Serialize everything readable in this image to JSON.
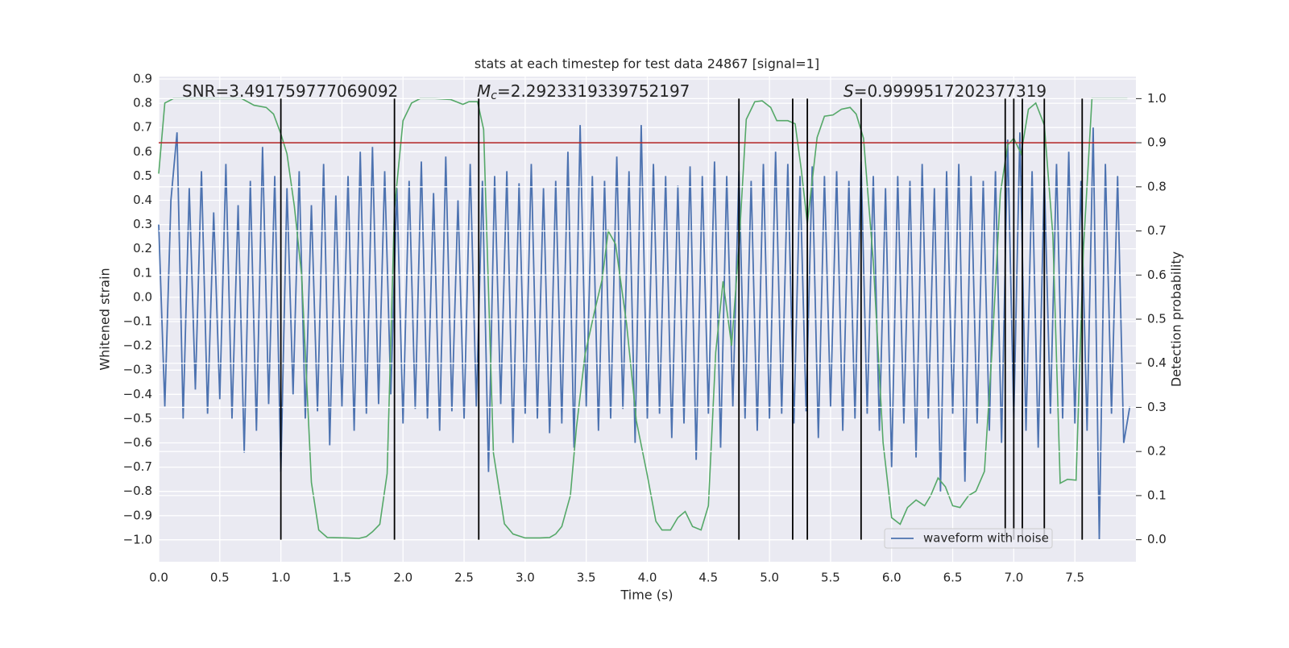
{
  "chart_data": {
    "type": "line",
    "title": "stats at each timestep for test data 24867 [signal=1]",
    "xlabel": "Time (s)",
    "ylabel": "Whitened strain",
    "y2label": "Detection probability",
    "annotations": [
      {
        "text": "SNR=3.491759777069092"
      },
      {
        "symbol": "M",
        "sub": "c",
        "text": "=2.2923319339752197"
      },
      {
        "symbol": "S",
        "text": "=0.9999517202377319"
      }
    ],
    "xlim": [
      0,
      8
    ],
    "ylim": [
      -1.09,
      0.91
    ],
    "y2lim": [
      -0.05,
      1.05
    ],
    "xticks": [
      {
        "value": 0,
        "label": "0.0"
      },
      0.5,
      {
        "value": 1,
        "label": "1.0"
      },
      1.5,
      {
        "value": 2,
        "label": "2.0"
      },
      2.5,
      {
        "value": 3,
        "label": "3.0"
      },
      3.5,
      {
        "value": 4,
        "label": "4.0"
      },
      4.5,
      {
        "value": 5,
        "label": "5.0"
      },
      5.5,
      {
        "value": 6,
        "label": "6.0"
      },
      6.5,
      {
        "value": 7,
        "label": "7.0"
      },
      7.5
    ],
    "yticks": [
      0.9,
      0.8,
      0.7,
      0.6,
      0.5,
      0.4,
      0.3,
      0.2,
      0.1,
      {
        "value": 0,
        "label": "0.0"
      },
      {
        "value": -0.1,
        "label": "−0.1"
      },
      {
        "value": -0.2,
        "label": "−0.2"
      },
      {
        "value": -0.3,
        "label": "−0.3"
      },
      {
        "value": -0.4,
        "label": "−0.4"
      },
      {
        "value": -0.5,
        "label": "−0.5"
      },
      {
        "value": -0.6,
        "label": "−0.6"
      },
      {
        "value": -0.7,
        "label": "−0.7"
      },
      {
        "value": -0.8,
        "label": "−0.8"
      },
      {
        "value": -0.9,
        "label": "−0.9"
      },
      {
        "value": -1,
        "label": "−1.0"
      }
    ],
    "y2ticks": [
      {
        "value": 0,
        "label": "0.0"
      },
      0.1,
      0.2,
      0.3,
      0.4,
      0.5,
      0.6,
      0.7,
      0.8,
      0.9,
      {
        "value": 1,
        "label": "1.0"
      }
    ],
    "grid": true,
    "legend": "lower right",
    "series": [
      {
        "name": "waveform with noise",
        "color": "#4c72b0",
        "axis": "y",
        "x": [
          0,
          0.05,
          0.1,
          0.15,
          0.2,
          0.25,
          0.3,
          0.35,
          0.4,
          0.45,
          0.5,
          0.55,
          0.6,
          0.65,
          0.7,
          0.75,
          0.8,
          0.85,
          0.9,
          0.95,
          1,
          1.05,
          1.1,
          1.15,
          1.2,
          1.25,
          1.3,
          1.35,
          1.4,
          1.45,
          1.5,
          1.55,
          1.6,
          1.65,
          1.7,
          1.75,
          1.8,
          1.85,
          1.9,
          1.95,
          2,
          2.05,
          2.1,
          2.15,
          2.2,
          2.25,
          2.3,
          2.35,
          2.4,
          2.45,
          2.5,
          2.55,
          2.6,
          2.65,
          2.7,
          2.75,
          2.8,
          2.85,
          2.9,
          2.95,
          3,
          3.05,
          3.1,
          3.15,
          3.2,
          3.25,
          3.3,
          3.35,
          3.4,
          3.45,
          3.5,
          3.55,
          3.6,
          3.65,
          3.7,
          3.75,
          3.8,
          3.85,
          3.9,
          3.95,
          4,
          4.05,
          4.1,
          4.15,
          4.2,
          4.25,
          4.3,
          4.35,
          4.4,
          4.45,
          4.5,
          4.55,
          4.6,
          4.65,
          4.7,
          4.75,
          4.8,
          4.85,
          4.9,
          4.95,
          5,
          5.05,
          5.1,
          5.15,
          5.2,
          5.25,
          5.3,
          5.35,
          5.4,
          5.45,
          5.5,
          5.55,
          5.6,
          5.65,
          5.7,
          5.75,
          5.8,
          5.85,
          5.9,
          5.95,
          6,
          6.05,
          6.1,
          6.15,
          6.2,
          6.25,
          6.3,
          6.35,
          6.4,
          6.45,
          6.5,
          6.55,
          6.6,
          6.65,
          6.7,
          6.75,
          6.8,
          6.85,
          6.9,
          6.95,
          7,
          7.05,
          7.1,
          7.15,
          7.2,
          7.25,
          7.3,
          7.35,
          7.4,
          7.45,
          7.5,
          7.55,
          7.6,
          7.65,
          7.7,
          7.75,
          7.8,
          7.85,
          7.9,
          7.95
        ],
        "values": [
          0.3,
          -0.45,
          0.4,
          0.68,
          -0.5,
          0.45,
          -0.38,
          0.52,
          -0.48,
          0.35,
          -0.42,
          0.55,
          -0.5,
          0.38,
          -0.64,
          0.48,
          -0.55,
          0.62,
          -0.44,
          0.5,
          -0.72,
          0.45,
          -0.4,
          0.52,
          -0.5,
          0.38,
          -0.47,
          0.55,
          -0.61,
          0.42,
          -0.45,
          0.5,
          -0.55,
          0.6,
          -0.48,
          0.62,
          -0.44,
          0.52,
          -0.4,
          0.45,
          -0.52,
          0.48,
          -0.46,
          0.56,
          -0.5,
          0.43,
          -0.55,
          0.58,
          -0.47,
          0.4,
          -0.5,
          0.55,
          -0.45,
          0.48,
          -0.72,
          0.5,
          -0.44,
          0.52,
          -0.6,
          0.47,
          -0.48,
          0.55,
          -0.5,
          0.45,
          -0.56,
          0.48,
          -0.52,
          0.6,
          -0.62,
          0.71,
          -0.45,
          0.5,
          -0.55,
          0.48,
          -0.5,
          0.58,
          -0.46,
          0.52,
          -0.6,
          0.71,
          -0.5,
          0.55,
          -0.48,
          0.5,
          -0.58,
          0.46,
          -0.52,
          0.54,
          -0.67,
          0.5,
          -0.48,
          0.56,
          -0.62,
          0.5,
          -0.45,
          0.52,
          -0.5,
          0.48,
          -0.55,
          0.55,
          -0.5,
          0.6,
          -0.48,
          0.55,
          -0.52,
          0.5,
          -0.47,
          0.54,
          -0.58,
          0.5,
          -0.45,
          0.52,
          -0.55,
          0.48,
          -0.5,
          0.56,
          -0.48,
          0.5,
          -0.55,
          0.45,
          -0.7,
          0.5,
          -0.52,
          0.48,
          -0.66,
          0.55,
          -0.5,
          0.45,
          -0.8,
          0.52,
          -0.48,
          0.55,
          -0.76,
          0.5,
          -0.52,
          0.48,
          -0.55,
          0.52,
          -0.6,
          0.65,
          -0.5,
          0.68,
          -0.55,
          0.52,
          -0.62,
          0.5,
          -0.48,
          0.55,
          -0.5,
          0.6,
          -0.52,
          0.48,
          -0.55,
          0.7,
          -1.0,
          0.55,
          -0.48,
          0.5,
          -0.6,
          -0.45
        ]
      },
      {
        "color": "#55a868",
        "axis": "y2",
        "x": [
          0,
          0.05,
          0.12,
          0.61,
          0.68,
          0.78,
          0.88,
          0.94,
          1.0,
          1.05,
          1.11,
          1.17,
          1.25,
          1.31,
          1.38,
          1.54,
          1.64,
          1.7,
          1.75,
          1.81,
          1.87,
          1.93,
          2.0,
          2.07,
          2.14,
          2.26,
          2.39,
          2.49,
          2.54,
          2.61,
          2.66,
          2.74,
          2.83,
          2.9,
          3.0,
          3.12,
          3.2,
          3.25,
          3.3,
          3.37,
          3.42,
          3.49,
          3.57,
          3.63,
          3.68,
          3.74,
          3.83,
          3.91,
          4.0,
          4.07,
          4.12,
          4.19,
          4.25,
          4.31,
          4.37,
          4.44,
          4.5,
          4.56,
          4.62,
          4.69,
          4.75,
          4.81,
          4.88,
          4.94,
          5.01,
          5.06,
          5.15,
          5.21,
          5.26,
          5.31,
          5.39,
          5.45,
          5.52,
          5.59,
          5.66,
          5.71,
          5.77,
          5.85,
          5.93,
          6.0,
          6.07,
          6.13,
          6.2,
          6.27,
          6.32,
          6.38,
          6.44,
          6.5,
          6.56,
          6.63,
          6.69,
          6.76,
          6.82,
          6.89,
          6.95,
          7.0,
          7.06,
          7.12,
          7.18,
          7.25,
          7.32,
          7.38,
          7.44,
          7.51,
          7.57,
          7.64,
          7.93
        ],
        "values": [
          0.83,
          0.99,
          1.0,
          1.0,
          1.0,
          0.985,
          0.98,
          0.965,
          0.92,
          0.875,
          0.757,
          0.6,
          0.13,
          0.022,
          0.005,
          0.004,
          0.003,
          0.007,
          0.018,
          0.035,
          0.15,
          0.75,
          0.95,
          0.99,
          1.0,
          1.0,
          0.998,
          0.987,
          0.993,
          0.993,
          0.93,
          0.197,
          0.036,
          0.013,
          0.004,
          0.004,
          0.005,
          0.013,
          0.03,
          0.1,
          0.255,
          0.42,
          0.52,
          0.59,
          0.7,
          0.67,
          0.49,
          0.27,
          0.146,
          0.042,
          0.022,
          0.022,
          0.05,
          0.064,
          0.03,
          0.022,
          0.077,
          0.425,
          0.586,
          0.44,
          0.666,
          0.953,
          0.993,
          0.995,
          0.98,
          0.95,
          0.95,
          0.943,
          0.84,
          0.717,
          0.912,
          0.96,
          0.963,
          0.976,
          0.98,
          0.965,
          0.91,
          0.63,
          0.22,
          0.05,
          0.035,
          0.073,
          0.09,
          0.077,
          0.1,
          0.14,
          0.12,
          0.077,
          0.073,
          0.1,
          0.11,
          0.155,
          0.42,
          0.785,
          0.895,
          0.91,
          0.875,
          0.976,
          0.99,
          0.94,
          0.69,
          0.128,
          0.137,
          0.135,
          0.657,
          1.0,
          1.0
        ]
      }
    ],
    "threshold": {
      "value": 0.9,
      "axis": "y2",
      "color": "#b22222"
    },
    "vlines": {
      "x": [
        1.0,
        1.93,
        2.62,
        4.75,
        5.19,
        5.31,
        5.75,
        6.93,
        7.0,
        7.07,
        7.25,
        7.56
      ],
      "span": [
        0,
        1
      ],
      "axis": "y2",
      "color": "#000000"
    }
  }
}
